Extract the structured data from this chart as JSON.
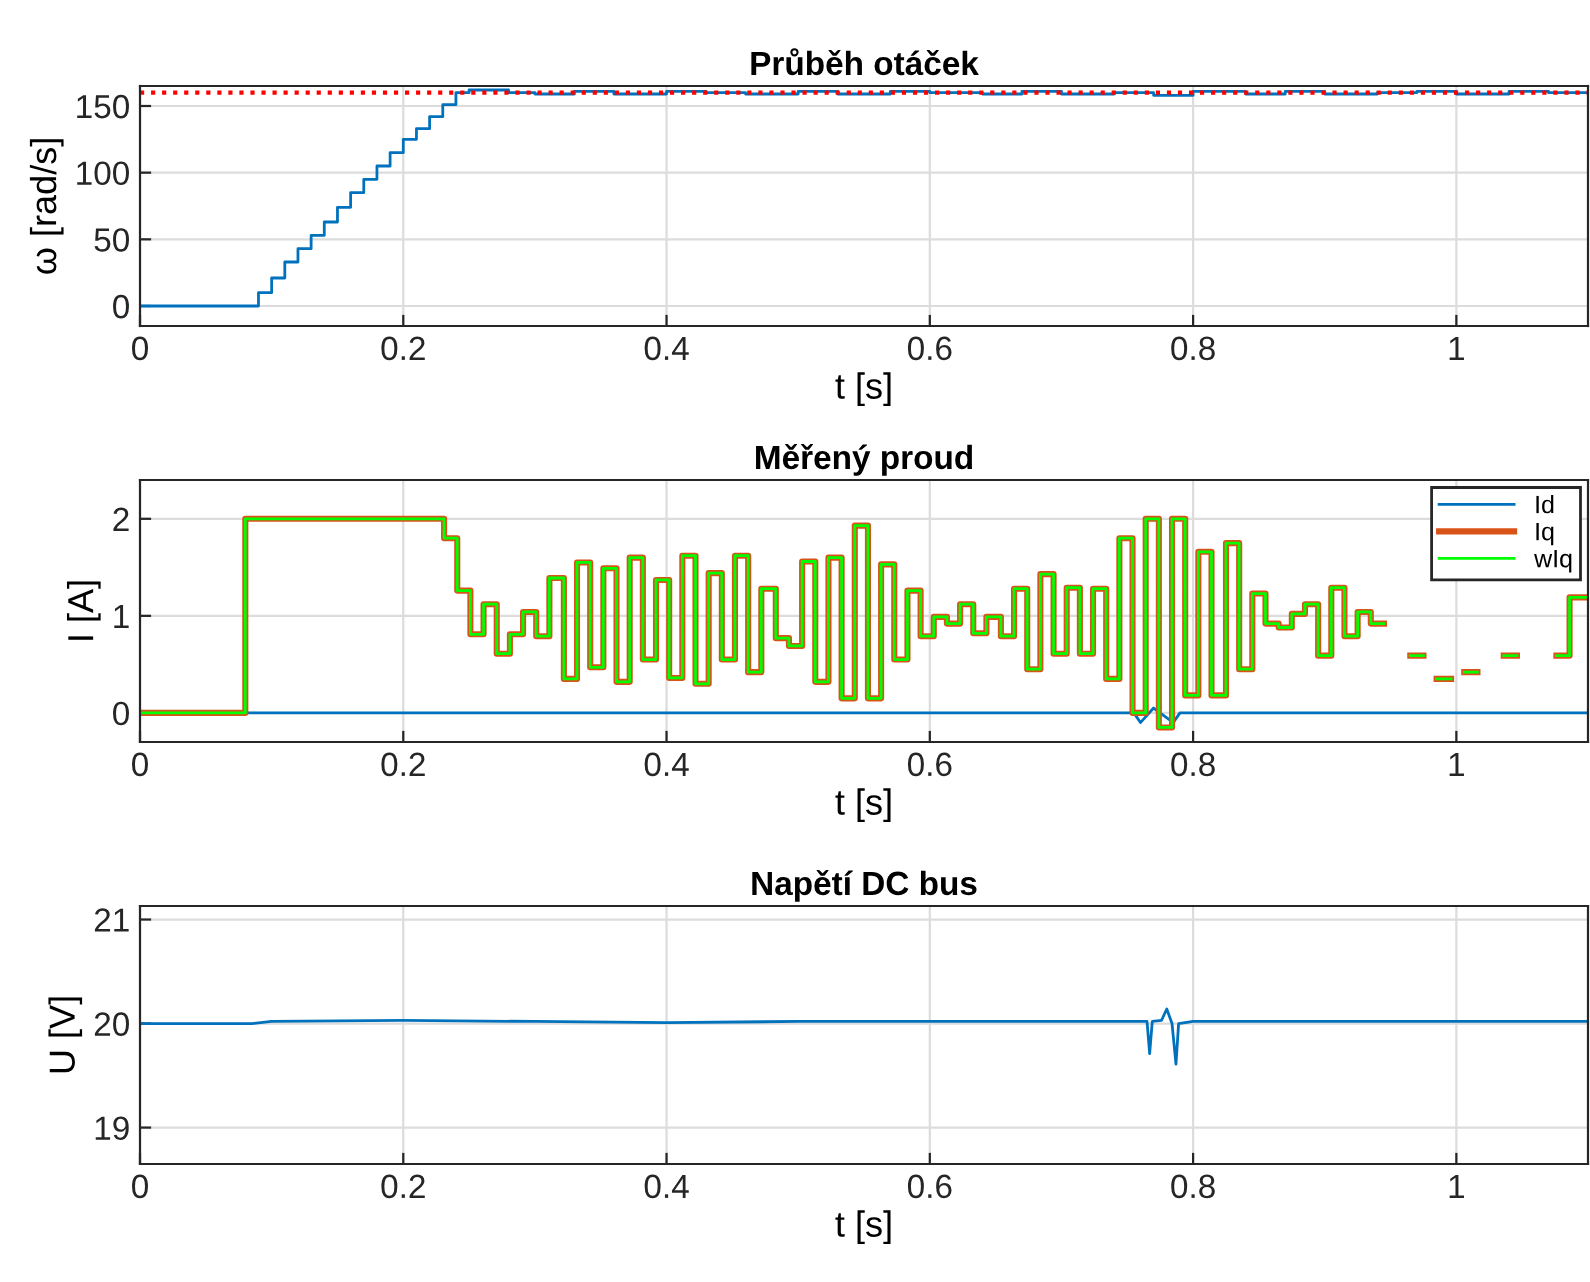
{
  "chart_data": [
    {
      "type": "step",
      "title": "Průběh otáček",
      "xlabel": "t [s]",
      "ylabel": "ω [rad/s]",
      "xlim": [
        0,
        1.1
      ],
      "xticks": [
        0,
        0.2,
        0.4,
        0.6,
        0.8,
        1
      ],
      "ylim": [
        -15,
        165
      ],
      "yticks": [
        0,
        50,
        100,
        150
      ],
      "grid": true,
      "ref_lines": [
        {
          "axis": "y",
          "value": 160,
          "color": "#ff0000",
          "line_style": "dotted"
        }
      ],
      "series": [
        {
          "color": "#0072bd",
          "x": [
            0,
            0.09,
            0.1,
            0.11,
            0.12,
            0.13,
            0.14,
            0.15,
            0.16,
            0.17,
            0.18,
            0.19,
            0.2,
            0.21,
            0.22,
            0.23,
            0.24,
            0.25,
            0.28,
            0.3,
            0.33,
            0.36,
            0.4,
            0.43,
            0.46,
            0.5,
            0.53,
            0.57,
            0.6,
            0.64,
            0.67,
            0.7,
            0.74,
            0.77,
            0.8,
            0.84,
            0.87,
            0.9,
            0.94,
            0.97,
            1.0,
            1.04,
            1.07,
            1.1
          ],
          "values": [
            0,
            10,
            21,
            33,
            43,
            53,
            63,
            74,
            85,
            95,
            105,
            115,
            125,
            133,
            142,
            151,
            160,
            162,
            160,
            159,
            161,
            159,
            161,
            160,
            159,
            161,
            159,
            161,
            160,
            159,
            161,
            159,
            160,
            158,
            161,
            159,
            161,
            159,
            160,
            161,
            159,
            161,
            160,
            160
          ]
        }
      ]
    },
    {
      "type": "step",
      "title": "Měřený proud",
      "xlabel": "t [s]",
      "ylabel": "I [A]",
      "xlim": [
        0,
        1.1
      ],
      "xticks": [
        0,
        0.2,
        0.4,
        0.6,
        0.8,
        1
      ],
      "ylim": [
        -0.3,
        2.4
      ],
      "yticks": [
        0,
        1,
        2
      ],
      "grid": true,
      "legend": "top right",
      "series": [
        {
          "name": "Id",
          "type": "line",
          "color": "#0072bd",
          "x": [
            0,
            0.5,
            0.755,
            0.76,
            0.77,
            0.785,
            0.79,
            1.1
          ],
          "values": [
            0,
            0,
            0,
            -0.1,
            0.05,
            -0.1,
            0,
            0
          ]
        },
        {
          "name": "Iq",
          "color": "#d95319",
          "x": [
            0,
            0.08,
            0.231,
            0.241,
            0.251,
            0.261,
            0.271,
            0.281,
            0.291,
            0.301,
            0.311,
            0.322,
            0.332,
            0.342,
            0.352,
            0.362,
            0.372,
            0.382,
            0.392,
            0.402,
            0.412,
            0.422,
            0.432,
            0.442,
            0.452,
            0.462,
            0.472,
            0.483,
            0.493,
            0.503,
            0.513,
            0.523,
            0.533,
            0.543,
            0.553,
            0.563,
            0.573,
            0.583,
            0.593,
            0.603,
            0.613,
            0.623,
            0.633,
            0.643,
            0.654,
            0.664,
            0.674,
            0.684,
            0.694,
            0.704,
            0.714,
            0.724,
            0.734,
            0.744,
            0.754,
            0.764,
            0.774,
            0.784,
            0.794,
            0.804,
            0.814,
            0.825,
            0.835,
            0.845,
            0.855,
            0.865,
            0.875,
            0.885,
            0.895,
            0.905,
            0.915,
            0.925,
            0.935,
            0.945,
            0.955,
            0.965,
            0.975,
            0.985,
            0.996,
            1.006,
            1.016,
            1.026,
            1.036,
            1.046,
            1.056,
            1.066,
            1.076,
            1.086,
            1.1
          ],
          "values": [
            0,
            2.0,
            1.8,
            1.26,
            0.81,
            1.12,
            0.61,
            0.81,
            1.04,
            0.79,
            1.39,
            0.35,
            1.55,
            0.47,
            1.49,
            0.32,
            1.6,
            0.55,
            1.37,
            0.36,
            1.62,
            0.3,
            1.44,
            0.55,
            1.62,
            0.42,
            1.28,
            0.77,
            0.69,
            1.56,
            0.32,
            1.6,
            0.15,
            1.93,
            0.15,
            1.53,
            0.55,
            1.26,
            0.79,
            0.99,
            0.92,
            1.12,
            0.82,
            0.99,
            0.79,
            1.28,
            0.45,
            1.43,
            0.61,
            1.29,
            0.61,
            1.28,
            0.35,
            1.8,
            0.0,
            2.0,
            -0.15,
            2.0,
            0.18,
            1.66,
            0.18,
            1.75,
            0.45,
            1.23,
            0.92,
            0.88,
            1.02,
            1.12,
            0.59,
            1.29,
            0.79,
            1.04,
            0.92,
            null,
            null,
            0.59,
            null,
            0.35,
            null,
            0.42,
            null,
            null,
            0.59,
            null,
            null,
            null,
            0.59,
            1.19,
            1.19
          ]
        },
        {
          "name": "wIq",
          "color": "#00ff00",
          "x": [
            0,
            0.08,
            0.231,
            0.241,
            0.251,
            0.261,
            0.271,
            0.281,
            0.291,
            0.301,
            0.311,
            0.322,
            0.332,
            0.342,
            0.352,
            0.362,
            0.372,
            0.382,
            0.392,
            0.402,
            0.412,
            0.422,
            0.432,
            0.442,
            0.452,
            0.462,
            0.472,
            0.483,
            0.493,
            0.503,
            0.513,
            0.523,
            0.533,
            0.543,
            0.553,
            0.563,
            0.573,
            0.583,
            0.593,
            0.603,
            0.613,
            0.623,
            0.633,
            0.643,
            0.654,
            0.664,
            0.674,
            0.684,
            0.694,
            0.704,
            0.714,
            0.724,
            0.734,
            0.744,
            0.754,
            0.764,
            0.774,
            0.784,
            0.794,
            0.804,
            0.814,
            0.825,
            0.835,
            0.845,
            0.855,
            0.865,
            0.875,
            0.885,
            0.895,
            0.905,
            0.915,
            0.925,
            0.935,
            0.945,
            0.955,
            0.965,
            0.975,
            0.985,
            0.996,
            1.006,
            1.016,
            1.026,
            1.036,
            1.046,
            1.056,
            1.066,
            1.076,
            1.086,
            1.1
          ],
          "values": [
            0,
            2.0,
            1.8,
            1.26,
            0.81,
            1.12,
            0.61,
            0.81,
            1.04,
            0.79,
            1.39,
            0.35,
            1.55,
            0.47,
            1.49,
            0.32,
            1.6,
            0.55,
            1.37,
            0.36,
            1.62,
            0.3,
            1.44,
            0.55,
            1.62,
            0.42,
            1.28,
            0.77,
            0.69,
            1.56,
            0.32,
            1.6,
            0.15,
            1.93,
            0.15,
            1.53,
            0.55,
            1.26,
            0.79,
            0.99,
            0.92,
            1.12,
            0.82,
            0.99,
            0.79,
            1.28,
            0.45,
            1.43,
            0.61,
            1.29,
            0.61,
            1.28,
            0.35,
            1.8,
            0.0,
            2.0,
            -0.15,
            2.0,
            0.18,
            1.66,
            0.18,
            1.75,
            0.45,
            1.23,
            0.92,
            0.88,
            1.02,
            1.12,
            0.59,
            1.29,
            0.79,
            1.04,
            0.92,
            null,
            null,
            0.59,
            null,
            0.35,
            null,
            0.42,
            null,
            null,
            0.59,
            null,
            null,
            null,
            0.59,
            1.19,
            1.19
          ]
        }
      ]
    },
    {
      "type": "line",
      "title": "Napětí DC bus",
      "xlabel": "t [s]",
      "ylabel": "U [V]",
      "xlim": [
        0,
        1.1
      ],
      "xticks": [
        0,
        0.2,
        0.4,
        0.6,
        0.8,
        1
      ],
      "ylim": [
        18.65,
        21.13
      ],
      "yticks": [
        19,
        20,
        21
      ],
      "grid": true,
      "series": [
        {
          "color": "#0072bd",
          "x": [
            0,
            0.085,
            0.1,
            0.2,
            0.3,
            0.4,
            0.5,
            0.6,
            0.7,
            0.765,
            0.767,
            0.769,
            0.776,
            0.78,
            0.784,
            0.787,
            0.789,
            0.8,
            0.9,
            1.0,
            1.1
          ],
          "values": [
            20.0,
            20.0,
            20.02,
            20.03,
            20.02,
            20.01,
            20.02,
            20.02,
            20.02,
            20.02,
            19.71,
            20.02,
            20.03,
            20.14,
            20.0,
            19.61,
            20.0,
            20.02,
            20.02,
            20.02,
            20.02
          ]
        }
      ]
    }
  ]
}
